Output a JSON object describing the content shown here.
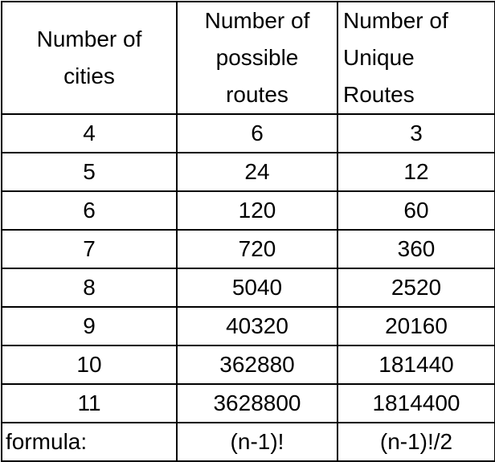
{
  "table": {
    "headers": [
      [
        "Number of",
        "cities"
      ],
      [
        "Number of",
        "possible",
        "routes"
      ],
      [
        "Number of",
        "Unique",
        "Routes"
      ]
    ],
    "rows": [
      [
        "4",
        "6",
        "3"
      ],
      [
        "5",
        "24",
        "12"
      ],
      [
        "6",
        "120",
        "60"
      ],
      [
        "7",
        "720",
        "360"
      ],
      [
        "8",
        "5040",
        "2520"
      ],
      [
        "9",
        "40320",
        "20160"
      ],
      [
        "10",
        "362880",
        "181440"
      ],
      [
        "11",
        "3628800",
        "1814400"
      ]
    ],
    "formula": {
      "label": "formula:",
      "possible": "(n-1)!",
      "unique": "(n-1)!/2"
    }
  }
}
